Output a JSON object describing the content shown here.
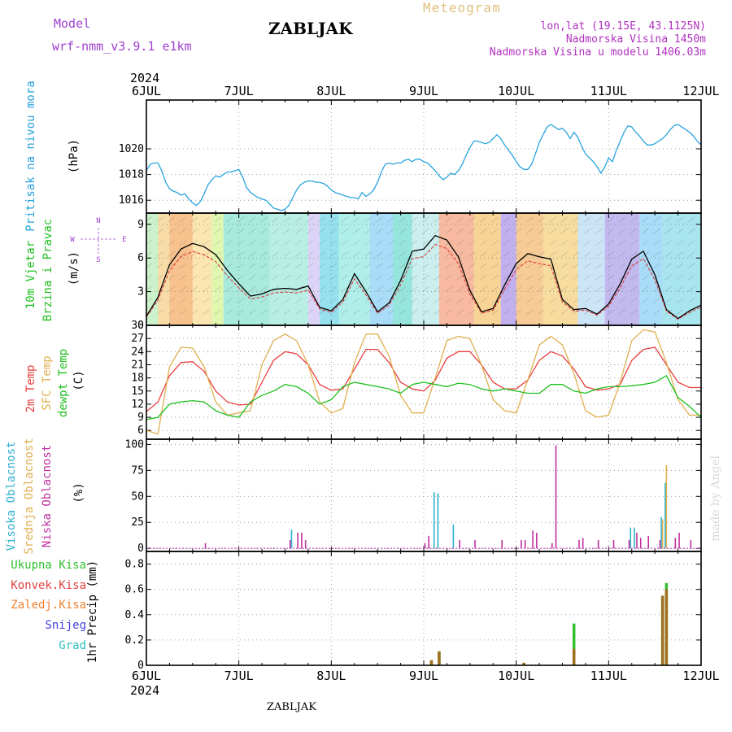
{
  "header": {
    "model_label": "Model",
    "model_name": "wrf-nmm_v3.9.1 e1km",
    "station": "ZABLJAK",
    "title": "Meteogram",
    "lonlat": "lon,lat (19.15E, 43.1125N)",
    "elevation": "Nadmorska Visina 1450m",
    "model_elevation": "Nadmorska Visina u modelu 1406.03m"
  },
  "footer": {
    "station": "ZABLJAK",
    "credit": "made by Angel"
  },
  "colors": {
    "pressure": "#29a3dd",
    "wind_speed": "#000000",
    "wind_avg": "#e03030",
    "temp2m": "#e84040",
    "sfc_temp": "#e0b050",
    "dewpt": "#20c020",
    "cloud_high": "#30b0d0",
    "cloud_mid": "#e0b050",
    "cloud_low": "#c030a0",
    "precip_total": "#30c030",
    "precip_conv": "#e04040",
    "precip_frozen": "#f08030",
    "precip_snow": "#4040e0",
    "precip_hail": "#30c0c0"
  },
  "chart_data": {
    "type": "line",
    "x_axis": {
      "year": "2024",
      "ticks": [
        "6JUL",
        "7JUL",
        "8JUL",
        "9JUL",
        "10JUL",
        "11JUL",
        "12JUL"
      ],
      "range": [
        0,
        144
      ],
      "unit": "hours"
    },
    "panels": [
      {
        "id": "pressure",
        "type": "line",
        "ylabel": [
          "Pritisak na nivou mora",
          "(hPa)"
        ],
        "ylim": [
          1015.0,
          1023.8
        ],
        "yticks": [
          1016,
          1018,
          1020
        ],
        "grid": true,
        "series": [
          {
            "name": "Pritisak na nivou mora",
            "x": [
              0,
              1,
              2,
              3,
              4,
              5,
              6,
              7,
              8,
              9,
              10,
              11,
              12,
              13,
              14,
              15,
              16,
              17,
              18,
              19,
              20,
              21,
              22,
              23,
              24,
              25,
              26,
              27,
              28,
              29,
              30,
              31,
              32,
              33,
              34,
              35,
              36,
              37,
              38,
              39,
              40,
              41,
              42,
              43,
              44,
              45,
              46,
              47,
              48,
              49,
              50,
              51,
              52,
              53,
              54,
              55,
              56,
              57,
              58,
              59,
              60,
              61,
              62,
              63,
              64,
              65,
              66,
              67,
              68,
              69,
              70,
              71,
              72,
              73,
              74,
              75,
              76,
              77,
              78,
              79,
              80,
              81,
              82,
              83,
              84,
              85,
              86,
              87,
              88,
              89,
              90,
              91,
              92,
              93,
              94,
              95,
              96,
              97,
              98,
              99,
              100,
              101,
              102,
              103,
              104,
              105,
              106,
              107,
              108,
              109,
              110,
              111,
              112,
              113,
              114,
              115,
              116,
              117,
              118,
              119,
              120,
              121,
              122,
              123,
              124,
              125,
              126,
              127,
              128,
              129,
              130,
              131,
              132,
              133,
              134,
              135,
              136,
              137,
              138,
              139,
              140,
              141,
              142,
              143,
              144
            ],
            "y": [
              1018.3,
              1018.8,
              1018.9,
              1018.9,
              1018.3,
              1017.4,
              1016.9,
              1016.7,
              1016.6,
              1016.4,
              1016.5,
              1016.1,
              1015.8,
              1015.6,
              1015.9,
              1016.5,
              1017.2,
              1017.6,
              1017.9,
              1017.8,
              1018.0,
              1018.2,
              1018.2,
              1018.3,
              1018.4,
              1017.8,
              1017.0,
              1016.6,
              1016.4,
              1016.2,
              1016.1,
              1016.0,
              1015.7,
              1015.4,
              1015.3,
              1015.2,
              1015.3,
              1015.6,
              1016.2,
              1016.8,
              1017.2,
              1017.4,
              1017.5,
              1017.5,
              1017.4,
              1017.4,
              1017.3,
              1017.1,
              1016.8,
              1016.6,
              1016.5,
              1016.4,
              1016.3,
              1016.2,
              1016.2,
              1016.1,
              1016.6,
              1016.3,
              1016.5,
              1016.8,
              1017.4,
              1018.2,
              1018.8,
              1018.9,
              1018.8,
              1018.9,
              1018.9,
              1019.1,
              1019.2,
              1019.0,
              1019.2,
              1019.2,
              1019.0,
              1018.9,
              1018.6,
              1018.3,
              1017.9,
              1017.6,
              1017.8,
              1018.1,
              1018.0,
              1018.3,
              1018.8,
              1019.5,
              1020.1,
              1020.6,
              1020.6,
              1020.5,
              1020.4,
              1020.5,
              1020.8,
              1021.1,
              1020.8,
              1020.3,
              1019.9,
              1019.5,
              1019.0,
              1018.6,
              1018.4,
              1018.4,
              1018.8,
              1019.6,
              1020.5,
              1021.1,
              1021.7,
              1021.9,
              1021.7,
              1021.5,
              1021.6,
              1021.3,
              1020.8,
              1021.3,
              1020.9,
              1020.2,
              1019.6,
              1019.3,
              1019.0,
              1018.6,
              1018.1,
              1018.6,
              1019.3,
              1019.0,
              1019.9,
              1020.6,
              1021.3,
              1021.8,
              1021.7,
              1021.3,
              1021.0,
              1020.6,
              1020.3,
              1020.3,
              1020.4,
              1020.6,
              1020.8,
              1021.1,
              1021.5,
              1021.8,
              1021.9,
              1021.7,
              1021.5,
              1021.3,
              1021.0,
              1020.6,
              1020.3
            ]
          }
        ]
      },
      {
        "id": "wind",
        "type": "line",
        "ylabel": [
          "10m Vjetar",
          "Brzina i Pravac",
          "(m/s)"
        ],
        "compass": {
          "north": "N",
          "east": "E",
          "south": "S",
          "west": "W"
        },
        "ylim": [
          0,
          10.0
        ],
        "yticks": [
          0,
          3,
          6,
          9
        ],
        "grid": true,
        "series": [
          {
            "name": "10m Vjetar",
            "x": [
              0,
              3,
              6,
              9,
              12,
              15,
              18,
              21,
              24,
              27,
              30,
              33,
              36,
              39,
              42,
              45,
              48,
              51,
              54,
              57,
              60,
              63,
              66,
              69,
              72,
              75,
              78,
              81,
              84,
              87,
              90,
              93,
              96,
              99,
              102,
              105,
              108,
              111,
              114,
              117,
              120,
              123,
              126,
              129,
              132,
              135,
              138,
              141,
              144
            ],
            "y": [
              0.8,
              2.5,
              5.4,
              6.8,
              7.3,
              7.0,
              6.3,
              4.9,
              3.7,
              2.6,
              2.8,
              3.2,
              3.3,
              3.2,
              3.5,
              1.6,
              1.3,
              2.3,
              4.6,
              3.0,
              1.2,
              2.0,
              4.0,
              6.6,
              6.8,
              8.0,
              7.6,
              6.1,
              3.1,
              1.2,
              1.5,
              3.6,
              5.5,
              6.4,
              6.1,
              5.9,
              2.3,
              1.4,
              1.5,
              1.0,
              1.9,
              3.7,
              5.9,
              6.6,
              4.5,
              1.4,
              0.6,
              1.3,
              1.8
            ]
          }
        ]
      },
      {
        "id": "temperature",
        "type": "line",
        "ylabel": [
          "2m Temp",
          "SFC Temp",
          "dewpt Temp",
          "(C)"
        ],
        "ylim": [
          4.0,
          30.0
        ],
        "yticks": [
          6,
          9,
          12,
          15,
          18,
          21,
          24,
          27,
          30
        ],
        "grid": true,
        "series": [
          {
            "name": "2m Temp",
            "x": [
              0,
              3,
              6,
              9,
              12,
              15,
              18,
              21,
              24,
              27,
              30,
              33,
              36,
              39,
              42,
              45,
              48,
              51,
              54,
              57,
              60,
              63,
              66,
              69,
              72,
              75,
              78,
              81,
              84,
              87,
              90,
              93,
              96,
              99,
              102,
              105,
              108,
              111,
              114,
              117,
              120,
              123,
              126,
              129,
              132,
              135,
              138,
              141,
              144
            ],
            "y": [
              10.3,
              12.5,
              18.5,
              21.5,
              21.7,
              19.5,
              15.0,
              12.5,
              11.8,
              12.0,
              17.0,
              22.0,
              24.0,
              23.5,
              21.0,
              16.5,
              15.2,
              15.5,
              20.0,
              24.5,
              24.5,
              21.5,
              17.0,
              15.5,
              15.0,
              17.5,
              22.5,
              24.0,
              24.0,
              21.0,
              17.0,
              15.5,
              15.5,
              17.5,
              22.0,
              24.0,
              23.0,
              20.0,
              16.0,
              15.2,
              15.5,
              16.5,
              22.0,
              24.5,
              25.0,
              21.0,
              17.0,
              15.8,
              15.8
            ]
          },
          {
            "name": "SFC Temp",
            "x": [
              0,
              3,
              6,
              9,
              12,
              15,
              18,
              21,
              24,
              27,
              30,
              33,
              36,
              39,
              42,
              45,
              48,
              51,
              54,
              57,
              60,
              63,
              66,
              69,
              72,
              75,
              78,
              81,
              84,
              87,
              90,
              93,
              96,
              99,
              102,
              105,
              108,
              111,
              114,
              117,
              120,
              123,
              126,
              129,
              132,
              135,
              138,
              141,
              144
            ],
            "y": [
              6.0,
              5.2,
              20.5,
              25.0,
              24.8,
              20.5,
              12.5,
              9.5,
              10.0,
              10.5,
              21.0,
              26.5,
              28.0,
              26.5,
              21.0,
              12.5,
              10.0,
              11.0,
              21.5,
              28.0,
              28.0,
              23.0,
              14.0,
              10.0,
              10.0,
              18.0,
              26.5,
              27.5,
              27.0,
              21.0,
              13.0,
              10.5,
              10.0,
              17.5,
              25.5,
              27.5,
              25.5,
              19.0,
              10.5,
              9.0,
              9.5,
              17.0,
              26.5,
              29.0,
              28.5,
              21.5,
              13.0,
              9.5,
              9.5
            ]
          },
          {
            "name": "dewpt Temp",
            "x": [
              0,
              3,
              6,
              9,
              12,
              15,
              18,
              21,
              24,
              27,
              30,
              33,
              36,
              39,
              42,
              45,
              48,
              51,
              54,
              57,
              60,
              63,
              66,
              69,
              72,
              75,
              78,
              81,
              84,
              87,
              90,
              93,
              96,
              99,
              102,
              105,
              108,
              111,
              114,
              117,
              120,
              123,
              126,
              129,
              132,
              135,
              138,
              141,
              144
            ],
            "y": [
              8.5,
              9.0,
              12.0,
              12.5,
              12.8,
              12.5,
              10.5,
              9.5,
              9.0,
              12.5,
              14.0,
              15.0,
              16.5,
              16.0,
              14.5,
              12.0,
              13.0,
              16.0,
              17.0,
              16.5,
              16.0,
              15.5,
              14.5,
              16.5,
              17.0,
              16.5,
              16.0,
              16.8,
              16.5,
              15.5,
              15.0,
              15.5,
              15.0,
              14.5,
              14.5,
              16.5,
              16.5,
              15.0,
              14.5,
              15.5,
              16.0,
              16.0,
              16.2,
              16.5,
              17.0,
              18.5,
              13.5,
              11.5,
              9.0
            ]
          }
        ]
      },
      {
        "id": "cloud",
        "type": "bar",
        "ylabel": [
          "Visoka Oblacnost",
          "Srednja Oblacnost",
          "Niska Oblacnost",
          "(%)"
        ],
        "ylim": [
          -3,
          105
        ],
        "yticks": [
          0,
          25,
          50,
          75,
          100
        ],
        "grid": true,
        "series": [
          {
            "name": "Visoka Oblacnost",
            "x": [
              38,
              75,
              76,
              80,
              126,
              127,
              134,
              135
            ],
            "y": [
              18,
              54,
              53,
              23,
              20,
              20,
              30,
              63
            ]
          },
          {
            "name": "Srednja Oblacnost",
            "x": [
              134,
              135
            ],
            "y": [
              28,
              80
            ]
          },
          {
            "name": "Niska Oblacnost",
            "x": [
              15,
              37,
              39,
              40,
              41,
              72,
              73,
              81,
              85,
              92,
              97,
              98,
              100,
              101,
              105,
              106,
              112,
              113,
              117,
              121,
              125,
              127,
              128,
              130,
              133,
              137,
              138,
              141
            ],
            "y": [
              5,
              8,
              15,
              15,
              8,
              5,
              12,
              8,
              8,
              8,
              8,
              8,
              17,
              15,
              5,
              99,
              8,
              10,
              8,
              8,
              8,
              15,
              10,
              12,
              8,
              10,
              15,
              8
            ]
          }
        ]
      },
      {
        "id": "precip",
        "type": "bar",
        "ylabel": [
          "1hr Precip (mm)"
        ],
        "legend": [
          "Ukupna Kisa",
          "Konvek.Kisa",
          "Zaledj.Kisa",
          "Snijeg",
          "Grad"
        ],
        "ylim": [
          0,
          0.9
        ],
        "yticks": [
          0,
          0.2,
          0.4,
          0.6,
          0.8
        ],
        "grid": true,
        "series": [
          {
            "name": "Ukupna Kisa",
            "x": [
              74,
              76,
              98,
              111,
              134,
              135
            ],
            "y": [
              0.04,
              0.11,
              0.02,
              0.33,
              0.55,
              0.65
            ]
          },
          {
            "name": "Konvek.Kisa",
            "x": [
              74,
              76,
              98,
              111,
              134,
              135
            ],
            "y": [
              0.04,
              0.11,
              0.02,
              0.13,
              0.55,
              0.6
            ]
          }
        ]
      }
    ]
  }
}
